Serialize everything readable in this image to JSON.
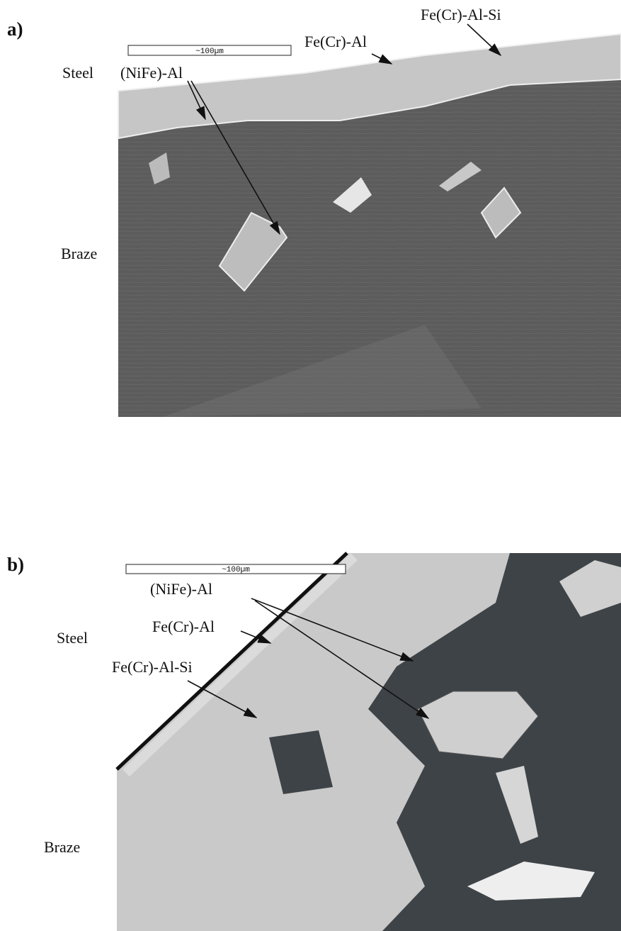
{
  "panels": [
    {
      "label": "a)",
      "scale_bar": "~100µm",
      "labels": {
        "steel": "Steel",
        "braze": "Braze"
      },
      "annotations": [
        "Fe(Cr)-Al-Si",
        "Fe(Cr)-Al",
        "(NiFe)-Al"
      ]
    },
    {
      "label": "b)",
      "scale_bar": "~100µm",
      "labels": {
        "steel": "Steel",
        "braze": "Braze"
      },
      "annotations": [
        "(NiFe)-Al",
        "Fe(Cr)-Al",
        "Fe(Cr)-Al-Si"
      ]
    }
  ]
}
